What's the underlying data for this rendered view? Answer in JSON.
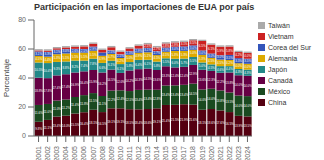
{
  "chart_data": {
    "type": "bar",
    "title": "Participación en las importaciones de EUA por país",
    "ylabel": "Porcentaje",
    "categories": [
      "2001",
      "2002",
      "2003",
      "2004",
      "2005",
      "2006",
      "2007",
      "2008",
      "2009",
      "2010",
      "2011",
      "2012",
      "2013",
      "2014",
      "2015",
      "2016",
      "2017",
      "2018",
      "2019",
      "2020",
      "2021",
      "2022",
      "2023",
      "2024"
    ],
    "series": [
      {
        "name": "China",
        "color": "#550011",
        "values": [
          9.8,
          11.1,
          13.4,
          14.0,
          15.5,
          16.4,
          18.1,
          16.5,
          19.1,
          19.1,
          18.5,
          18.4,
          18.6,
          19.1,
          21.4,
          21.5,
          21.9,
          21.6,
          18.1,
          18.6,
          17.6,
          16.5,
          13.9,
          13.5
        ],
        "value_labels": [
          "9.8%",
          "11.1%",
          "13.4%",
          "14.0%",
          "15.5%",
          "16.4%",
          "18.1%",
          "16.5%",
          "19.1%",
          "19.1%",
          "18.5%",
          "18.4%",
          "18.6%",
          "19.1%",
          "21.4%",
          "21.5%",
          "21.9%",
          "21.6%",
          "18.1%",
          "18.6%",
          "17.6%",
          "16.5%",
          "13.9%",
          "13.5%"
        ]
      },
      {
        "name": "México",
        "color": "#1a4a20",
        "values": [
          11.6,
          11.0,
          11.0,
          11.2,
          11.4,
          11.8,
          11.5,
          11.1,
          12.2,
          12.4,
          12.5,
          13.4,
          13.4,
          12.8,
          13.4,
          13.4,
          13.4,
          14.5,
          14.0,
          14.0,
          13.8,
          13.5,
          14.0,
          14.0
        ],
        "value_labels": [
          "11.6%",
          "11.0%",
          "11.0%",
          "11.2%",
          "11.4%",
          "11.8%",
          "11.5%",
          "11.1%",
          "12.2%",
          "12.4%",
          "12.5%",
          "13.4%",
          "13.4%",
          "12.8%",
          "13.4%",
          "13.4%",
          "13.4%",
          "14.5%",
          "14.0%",
          "14.0%",
          "13.8%",
          "13.5%",
          "14.0%",
          "14.0%"
        ]
      },
      {
        "name": "Canadá",
        "color": "#660044",
        "values": [
          18.8,
          17.8,
          17.4,
          17.4,
          16.9,
          16.4,
          15.9,
          16.2,
          14.5,
          12.0,
          14.2,
          14.3,
          14.5,
          13.6,
          13.3,
          12.4,
          12.4,
          12.9,
          13.6,
          12.3,
          12.2,
          13.8,
          14.0,
          14.0
        ],
        "value_labels": [
          "18.8%",
          "17.8%",
          "17.4%",
          "17.4%",
          "16.9%",
          "16.4%",
          "15.9%",
          "16.2%",
          "14.5%",
          "12.0%",
          "14.2%",
          "14.3%",
          "14.5%",
          "13.6%",
          "13.3%",
          "12.4%",
          "12.4%",
          "12.9%",
          "13.6%",
          "12.3%",
          "12.2%",
          "13.8%",
          "14.0%",
          "14.0%"
        ]
      },
      {
        "name": "Japón",
        "color": "#228888",
        "values": [
          10.5,
          10.4,
          9.3,
          8.8,
          8.2,
          7.4,
          7.8,
          6.6,
          6.1,
          6.1,
          5.8,
          6.4,
          6.1,
          5.8,
          5.5,
          6.0,
          5.7,
          5.5,
          5.0,
          4.5,
          4.6,
          4.4,
          4.3,
          4.3
        ],
        "value_labels": [
          "10.5%",
          "10.4%",
          "9.3%",
          "8.8%",
          "8.2%",
          "7.4%",
          "7.8%",
          "6.6%",
          "6.1%",
          "6.1%",
          "5.8%",
          "6.4%",
          "6.1%",
          "5.8%",
          "5.5%",
          "6.0%",
          "5.7%",
          "5.5%",
          "5.0%",
          "4.5%",
          "4.6%",
          "4.4%",
          "4.3%",
          "4.3%"
        ]
      },
      {
        "name": "Alemania",
        "color": "#ddaa00",
        "values": [
          4.5,
          4.4,
          5.3,
          5.5,
          5.5,
          5.5,
          5.5,
          4.9,
          4.7,
          4.2,
          5.0,
          4.9,
          5.1,
          4.5,
          4.5,
          5.3,
          5.3,
          5.0,
          5.3,
          4.5,
          4.5,
          4.2,
          4.0,
          4.0
        ],
        "value_labels": [
          "4.5%",
          "4.4%",
          "5.3%",
          "5.5%",
          "5.5%",
          "5.5%",
          "5.5%",
          "4.9%",
          "4.7%",
          "4.2%",
          "5.0%",
          "4.9%",
          "5.1%",
          "4.5%",
          "4.5%",
          "5.3%",
          "5.3%",
          "5.0%",
          "5.3%",
          "4.5%",
          "4.5%",
          "4.2%",
          "4.0%",
          "4.0%"
        ]
      },
      {
        "name": "Corea del Sur",
        "color": "#3355bb",
        "values": [
          3.1,
          3.3,
          3.1,
          3.0,
          2.6,
          2.5,
          2.9,
          2.3,
          2.5,
          2.5,
          2.5,
          2.9,
          3.1,
          2.7,
          2.9,
          3.0,
          3.1,
          3.0,
          3.0,
          3.0,
          3.0,
          3.5,
          3.5,
          3.5
        ],
        "value_labels": [
          "3.1%",
          "3.3%",
          "3.1%",
          "3.0%",
          "2.6%",
          "2.5%",
          "2.9%",
          null,
          "2.5%",
          "2.5%",
          "2.5%",
          "2.9%",
          "3.1%",
          "2.7%",
          "2.9%",
          "3.0%",
          "3.1%",
          "3.0%",
          "3.0%",
          "3.0%",
          "3.0%",
          "3.5%",
          "3.5%",
          "3.5%"
        ]
      },
      {
        "name": "Vietnam",
        "color": "#cc2222",
        "values": [
          0.7,
          0.9,
          1.0,
          1.2,
          1.5,
          1.8,
          1.9,
          1.8,
          2.1,
          1.8,
          1.9,
          2.0,
          2.5,
          2.7,
          2.8,
          2.9,
          3.1,
          3.5,
          6.5,
          6.1,
          5.9,
          5.8,
          4.2,
          4.0
        ],
        "value_labels": [
          null,
          null,
          null,
          null,
          null,
          null,
          null,
          null,
          null,
          null,
          null,
          null,
          "2.5%",
          "2.7%",
          "2.8%",
          "2.9%",
          "3.1%",
          "3.5%",
          "6.5%",
          "6.1%",
          "5.9%",
          "5.8%",
          "4.2%",
          "4.0%"
        ]
      },
      {
        "name": "Taiwán",
        "color": "#aaaaaa",
        "values": [
          0.9,
          0.9,
          0.9,
          0.9,
          0.9,
          0.9,
          0.9,
          0.9,
          0.9,
          0.9,
          0.9,
          0.9,
          0.9,
          0.9,
          0.9,
          0.9,
          0.9,
          0.9,
          0.9,
          0.9,
          0.9,
          0.9,
          0.9,
          0.9
        ],
        "value_labels": [
          null,
          null,
          null,
          null,
          null,
          null,
          null,
          null,
          null,
          null,
          null,
          null,
          null,
          null,
          null,
          null,
          null,
          null,
          null,
          null,
          null,
          null,
          null,
          null
        ]
      }
    ],
    "ylim": [
      0,
      80
    ],
    "yticks": [
      0,
      20,
      40,
      60,
      80
    ],
    "stacked": true,
    "data_labels": true,
    "legend": "right",
    "grid": false
  }
}
